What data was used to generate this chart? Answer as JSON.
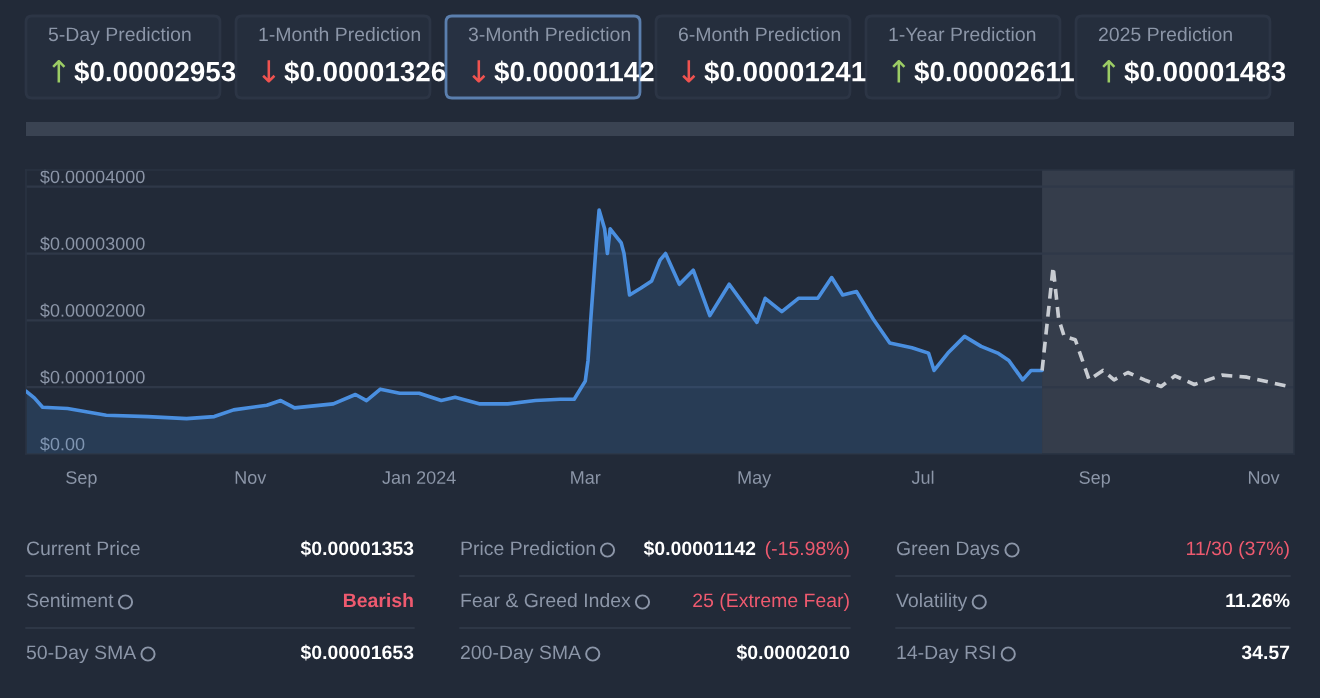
{
  "chart_data": [
    {
      "type": "other",
      "annotations": [
        "5-Day Prediction",
        "↑",
        "$0.00002953",
        "1-Month Prediction",
        "↓",
        "$0.00001326",
        "3-Month Prediction",
        "↓",
        "$0.00001142",
        "6-Month Prediction",
        "↓",
        "$0.00001241",
        "1-Year Prediction",
        "↑",
        "$0.00002611",
        "2025 Prediction",
        "↑",
        "$0.00001483"
      ],
      "colors": [
        "#8c96a8",
        "#9ccc65",
        "#ffffff",
        "#8c96a8",
        "#ef5350",
        "#ffffff",
        "#8c96a8",
        "#ef5350",
        "#ffffff",
        "#8c96a8",
        "#ef5350",
        "#ffffff",
        "#8c96a8",
        "#9ccc65",
        "#ffffff",
        "#8c96a8",
        "#9ccc65",
        "#ffffff"
      ]
    },
    {
      "type": "area",
      "xlim": [
        "2023-08-12",
        "2024-11-12"
      ],
      "ylim": [
        0,
        4.25e-05
      ],
      "xticks": [
        {
          "value": "2023-09-01",
          "label": "Sep"
        },
        {
          "value": "2023-11-01",
          "label": "Nov"
        },
        {
          "value": "2024-01-01",
          "label": "Jan 2024"
        },
        {
          "value": "2024-03-01",
          "label": "Mar"
        },
        {
          "value": "2024-05-01",
          "label": "May"
        },
        {
          "value": "2024-07-01",
          "label": "Jul"
        },
        {
          "value": "2024-09-01",
          "label": "Sep"
        },
        {
          "value": "2024-11-01",
          "label": "Nov"
        }
      ],
      "yticks": [
        {
          "value": 0,
          "label": "$0.00"
        },
        {
          "value": 1e-05,
          "label": "$0.00001000"
        },
        {
          "value": 2e-05,
          "label": "$0.00002000"
        },
        {
          "value": 3e-05,
          "label": "$0.00003000"
        },
        {
          "value": 4e-05,
          "label": "$0.00004000"
        }
      ],
      "grid": "y",
      "legend": false,
      "bands": [
        {
          "axis": "x",
          "from": "2024-08-13",
          "to": "2024-11-12",
          "color": "#353d4b"
        }
      ],
      "series": [
        {
          "type": "area",
          "color": "#4a8fe0",
          "line_style": "solid",
          "x": [
            "2023-08-12",
            "2023-08-15",
            "2023-08-18",
            "2023-08-27",
            "2023-09-10",
            "2023-09-25",
            "2023-10-09",
            "2023-10-19",
            "2023-10-26",
            "2023-11-07",
            "2023-11-12",
            "2023-11-17",
            "2023-12-01",
            "2023-12-09",
            "2023-12-13",
            "2023-12-18",
            "2023-12-25",
            "2024-01-01",
            "2024-01-09",
            "2024-01-14",
            "2024-01-23",
            "2024-02-02",
            "2024-02-12",
            "2024-02-21",
            "2024-02-26",
            "2024-03-01",
            "2024-03-02",
            "2024-03-03",
            "2024-03-05",
            "2024-03-06",
            "2024-03-08",
            "2024-03-09",
            "2024-03-10",
            "2024-03-14",
            "2024-03-15",
            "2024-03-17",
            "2024-03-21",
            "2024-03-25",
            "2024-03-28",
            "2024-03-30",
            "2024-04-04",
            "2024-04-09",
            "2024-04-15",
            "2024-04-22",
            "2024-05-02",
            "2024-05-05",
            "2024-05-11",
            "2024-05-17",
            "2024-05-24",
            "2024-05-29",
            "2024-06-02",
            "2024-06-07",
            "2024-06-13",
            "2024-06-19",
            "2024-06-27",
            "2024-07-03",
            "2024-07-05",
            "2024-07-10",
            "2024-07-16",
            "2024-07-22",
            "2024-07-28",
            "2024-08-01",
            "2024-08-06",
            "2024-08-09",
            "2024-08-13"
          ],
          "values": [
            9.4e-06,
            8.4e-06,
            7e-06,
            6.8e-06,
            5.8e-06,
            5.6e-06,
            5.3e-06,
            5.6e-06,
            6.6e-06,
            7.3e-06,
            8e-06,
            6.9e-06,
            7.5e-06,
            8.9e-06,
            8e-06,
            9.7e-06,
            9.1e-06,
            9.1e-06,
            8e-06,
            8.5e-06,
            7.5e-06,
            7.5e-06,
            8e-06,
            8.2e-06,
            8.2e-06,
            1.09e-05,
            1.4e-05,
            2.02e-05,
            3.16e-05,
            3.65e-05,
            3.37e-05,
            3e-05,
            3.37e-05,
            3.16e-05,
            3e-05,
            2.38e-05,
            2.48e-05,
            2.59e-05,
            2.9e-05,
            3e-05,
            2.54e-05,
            2.75e-05,
            2.07e-05,
            2.54e-05,
            1.97e-05,
            2.33e-05,
            2.13e-05,
            2.33e-05,
            2.33e-05,
            2.64e-05,
            2.38e-05,
            2.43e-05,
            2.02e-05,
            1.66e-05,
            1.59e-05,
            1.51e-05,
            1.25e-05,
            1.51e-05,
            1.76e-05,
            1.61e-05,
            1.51e-05,
            1.4e-05,
            1.11e-05,
            1.25e-05,
            1.25e-05
          ]
        },
        {
          "type": "line",
          "color": "#c8ccd2",
          "line_style": "dashed",
          "x": [
            "2024-08-13",
            "2024-08-15",
            "2024-08-17",
            "2024-08-19",
            "2024-08-21",
            "2024-08-25",
            "2024-08-30",
            "2024-09-04",
            "2024-09-08",
            "2024-09-13",
            "2024-09-19",
            "2024-09-25",
            "2024-09-30",
            "2024-10-07",
            "2024-10-17",
            "2024-10-26",
            "2024-11-10"
          ],
          "values": [
            1.25e-05,
            2.02e-05,
            2.8e-05,
            2.02e-05,
            1.76e-05,
            1.71e-05,
            1.11e-05,
            1.25e-05,
            1.11e-05,
            1.22e-05,
            1.11e-05,
            1.01e-05,
            1.17e-05,
            1.04e-05,
            1.18e-05,
            1.15e-05,
            1.01e-05
          ]
        }
      ]
    },
    {
      "type": "other",
      "annotations": [
        "Current Price",
        "$0.00001353",
        "Price Prediction",
        "$0.00001142",
        "(-15.98%)",
        "Green Days",
        "11/30 (37%)",
        "Sentiment",
        "Bearish",
        "Fear & Greed Index",
        "25 (Extreme Fear)",
        "Volatility",
        "11.26%",
        "50-Day SMA",
        "$0.00001653",
        "200-Day SMA",
        "$0.00002010",
        "14-Day RSI",
        "34.57"
      ],
      "colors": [
        "#8c96a8",
        "#ffffff",
        "#8c96a8",
        "#ffffff",
        "#ef5a6f",
        "#8c96a8",
        "#ef5a6f",
        "#8c96a8",
        "#ef5a6f",
        "#8c96a8",
        "#ef5a6f",
        "#8c96a8",
        "#ffffff",
        "#8c96a8",
        "#ffffff",
        "#8c96a8",
        "#ffffff",
        "#8c96a8",
        "#ffffff"
      ]
    }
  ]
}
